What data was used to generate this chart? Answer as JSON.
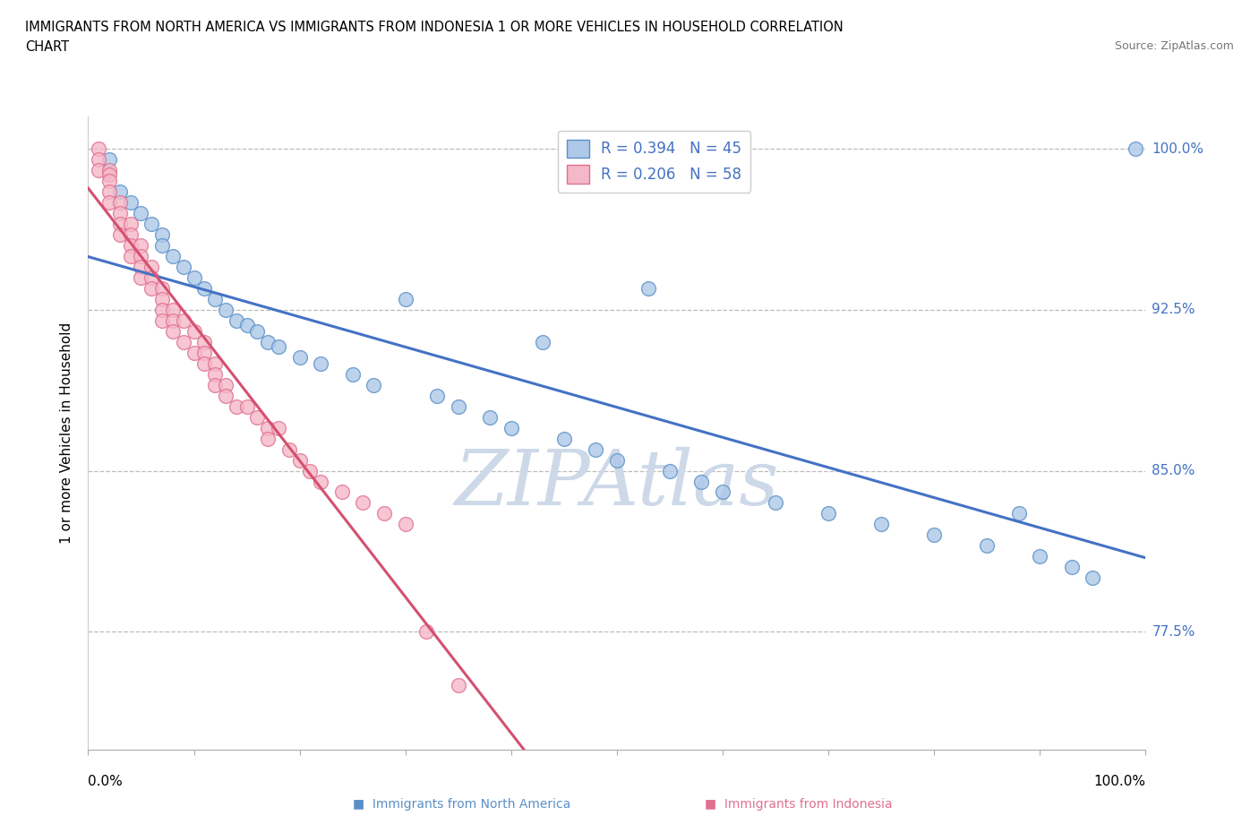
{
  "title_line1": "IMMIGRANTS FROM NORTH AMERICA VS IMMIGRANTS FROM INDONESIA 1 OR MORE VEHICLES IN HOUSEHOLD CORRELATION",
  "title_line2": "CHART",
  "source": "Source: ZipAtlas.com",
  "ylabel": "1 or more Vehicles in Household",
  "xmin": 0.0,
  "xmax": 1.0,
  "ymin": 72.0,
  "ymax": 101.5,
  "legend_blue_label": "R = 0.394   N = 45",
  "legend_pink_label": "R = 0.206   N = 58",
  "blue_scatter_color": "#adc8e8",
  "blue_edge_color": "#5b8fc7",
  "pink_scatter_color": "#f5b8c8",
  "pink_edge_color": "#e07090",
  "blue_line_color": "#4472c4",
  "pink_line_color": "#d45070",
  "watermark_color": "#cdd9e8",
  "grid_color": "#bbbbbb",
  "right_tick_color": "#4472c4",
  "ytick_positions": [
    77.5,
    85.0,
    92.5,
    100.0
  ],
  "ytick_labels": [
    "77.5%",
    "85.0%",
    "92.5%",
    "100.0%"
  ],
  "na_x": [
    0.02,
    0.03,
    0.04,
    0.05,
    0.06,
    0.07,
    0.07,
    0.08,
    0.09,
    0.1,
    0.11,
    0.12,
    0.13,
    0.14,
    0.15,
    0.16,
    0.17,
    0.18,
    0.2,
    0.22,
    0.25,
    0.27,
    0.3,
    0.33,
    0.35,
    0.38,
    0.4,
    0.43,
    0.45,
    0.48,
    0.5,
    0.53,
    0.55,
    0.58,
    0.6,
    0.65,
    0.7,
    0.75,
    0.8,
    0.85,
    0.88,
    0.9,
    0.93,
    0.95,
    0.99
  ],
  "na_y": [
    99.5,
    98.0,
    97.5,
    97.0,
    96.5,
    96.0,
    95.5,
    95.0,
    94.5,
    94.0,
    93.5,
    93.0,
    92.5,
    92.0,
    91.8,
    91.5,
    91.0,
    90.8,
    90.3,
    90.0,
    89.5,
    89.0,
    93.0,
    88.5,
    88.0,
    87.5,
    87.0,
    91.0,
    86.5,
    86.0,
    85.5,
    93.5,
    85.0,
    84.5,
    84.0,
    83.5,
    83.0,
    82.5,
    82.0,
    81.5,
    83.0,
    81.0,
    80.5,
    80.0,
    100.0
  ],
  "id_x": [
    0.01,
    0.01,
    0.01,
    0.02,
    0.02,
    0.02,
    0.02,
    0.02,
    0.03,
    0.03,
    0.03,
    0.03,
    0.04,
    0.04,
    0.04,
    0.04,
    0.05,
    0.05,
    0.05,
    0.05,
    0.06,
    0.06,
    0.06,
    0.07,
    0.07,
    0.07,
    0.07,
    0.08,
    0.08,
    0.08,
    0.09,
    0.09,
    0.1,
    0.1,
    0.11,
    0.11,
    0.11,
    0.12,
    0.12,
    0.12,
    0.13,
    0.13,
    0.14,
    0.15,
    0.16,
    0.17,
    0.17,
    0.18,
    0.19,
    0.2,
    0.21,
    0.22,
    0.24,
    0.26,
    0.28,
    0.3,
    0.32,
    0.35
  ],
  "id_y": [
    100.0,
    99.5,
    99.0,
    99.0,
    98.8,
    98.5,
    98.0,
    97.5,
    97.5,
    97.0,
    96.5,
    96.0,
    96.5,
    96.0,
    95.5,
    95.0,
    95.5,
    95.0,
    94.5,
    94.0,
    94.5,
    94.0,
    93.5,
    93.5,
    93.0,
    92.5,
    92.0,
    92.5,
    92.0,
    91.5,
    92.0,
    91.0,
    91.5,
    90.5,
    91.0,
    90.5,
    90.0,
    90.0,
    89.5,
    89.0,
    89.0,
    88.5,
    88.0,
    88.0,
    87.5,
    87.0,
    86.5,
    87.0,
    86.0,
    85.5,
    85.0,
    84.5,
    84.0,
    83.5,
    83.0,
    82.5,
    77.5,
    75.0
  ]
}
